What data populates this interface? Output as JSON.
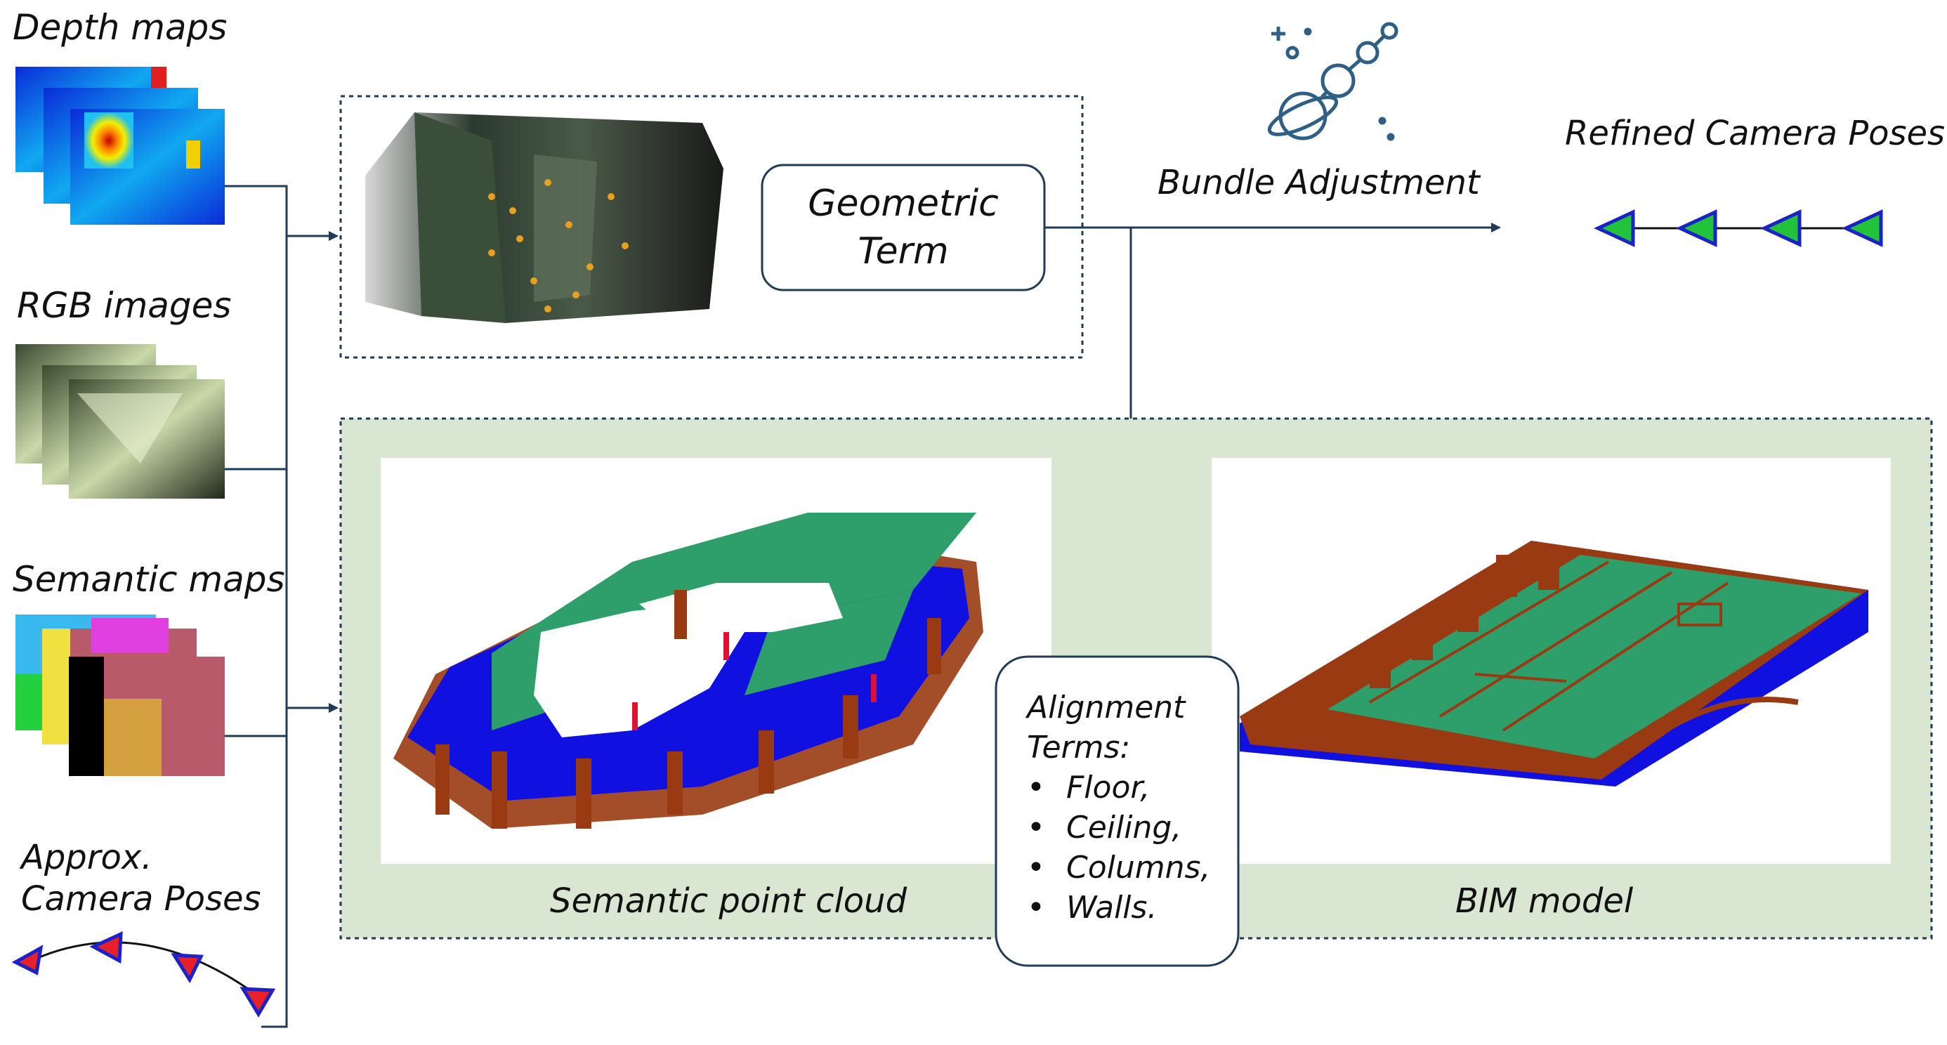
{
  "inputs": {
    "depth_maps": "Depth maps",
    "rgb_images": "RGB images",
    "semantic_maps": "Semantic maps",
    "approx_poses_line1": "Approx.",
    "approx_poses_line2": "Camera Poses"
  },
  "geometric_term": {
    "line1": "Geometric",
    "line2": "Term"
  },
  "bundle_adjustment": "Bundle Adjustment",
  "refined_camera_poses": "Refined Camera Poses",
  "semantic_point_cloud": "Semantic point cloud",
  "bim_model": "BIM model",
  "alignment": {
    "title_line1": "Alignment",
    "title_line2": "Terms:",
    "items": [
      "Floor,",
      "Ceiling,",
      "Columns,",
      "Walls."
    ]
  },
  "colors": {
    "line": "#1f3b57",
    "green_panel": "#d9e6d2",
    "pose_fill_approx": "#e8202a",
    "pose_fill_refined": "#22c33a",
    "pose_outline": "#1a22c8",
    "semantic_green": "#2e9e6a",
    "semantic_blue": "#1010e0",
    "semantic_brown": "#9a3a12"
  },
  "icons": {
    "bundle_adjustment": "planet-satellite-icon"
  }
}
